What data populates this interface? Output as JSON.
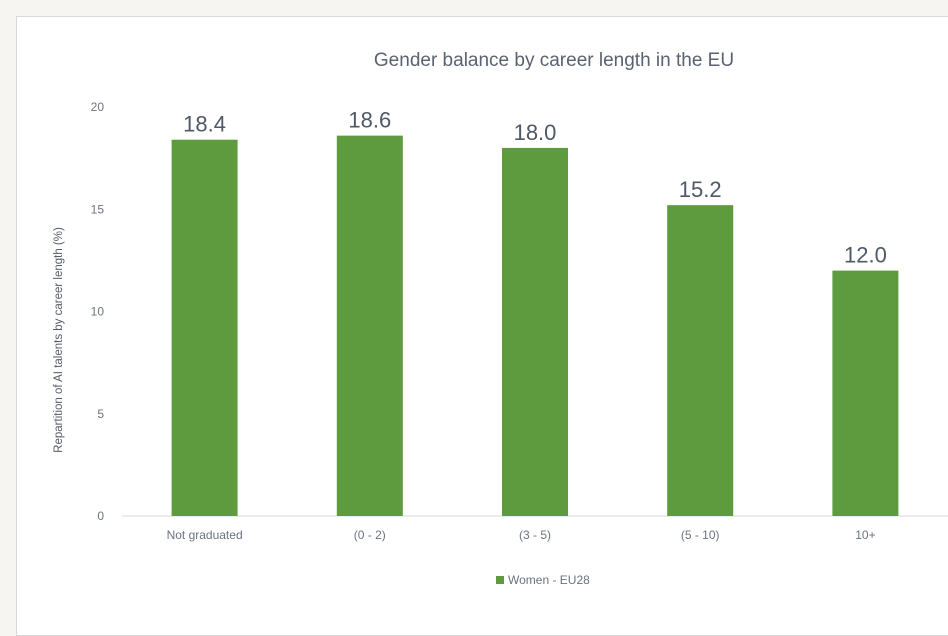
{
  "chart_data": {
    "type": "bar",
    "title": "Gender balance by career length in the EU",
    "ylabel": "Repartition of AI talents by career length (%)",
    "xlabel": "",
    "categories": [
      "Not graduated",
      "(0 - 2)",
      "(3 - 5)",
      "(5 - 10)",
      "10+"
    ],
    "series": [
      {
        "name": "Women - EU28",
        "values": [
          18.4,
          18.6,
          18.0,
          15.2,
          12.0
        ],
        "color": "#5e9b3f"
      }
    ],
    "ylim": [
      0,
      20
    ],
    "yticks": [
      0,
      5,
      10,
      15,
      20
    ],
    "data_labels": [
      "18.4",
      "18.6",
      "18.0",
      "15.2",
      "12.0"
    ],
    "grid": false,
    "legend_position": "bottom"
  }
}
